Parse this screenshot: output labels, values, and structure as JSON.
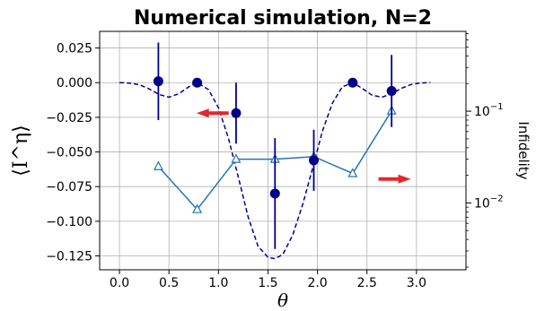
{
  "chart_data": {
    "type": "line",
    "title": "Numerical simulation, N=2",
    "xlabel": "θ",
    "ylabel": "⟨I^η⟩",
    "y2label": "Infidelity",
    "xlim": [
      -0.2,
      3.5
    ],
    "ylim": [
      -0.135,
      0.037
    ],
    "y2lim_log10": [
      -2.728,
      -0.13
    ],
    "log_y2": true,
    "grid": true,
    "xticks": [
      "0.0",
      "0.5",
      "1.0",
      "1.5",
      "2.0",
      "2.5",
      "3.0"
    ],
    "yticks": [
      "0.025",
      "0.000",
      "−0.025",
      "−0.050",
      "−0.075",
      "−0.100",
      "−0.125"
    ],
    "y2ticks": [
      "10",
      "10"
    ],
    "y2tick_exponents": [
      "−1",
      "−2"
    ],
    "series": [
      {
        "kind": "errorbar",
        "color": "#00008b",
        "x": [
          0.393,
          0.785,
          1.178,
          1.571,
          1.963,
          2.356,
          2.749
        ],
        "y": [
          0.001,
          0.0,
          -0.022,
          -0.08,
          -0.056,
          0.0,
          -0.006
        ],
        "yerr": [
          0.028,
          0.003,
          0.022,
          0.04,
          0.022,
          0.002,
          0.026
        ]
      },
      {
        "kind": "theory",
        "color": "#00008b",
        "style": "dashed",
        "x": [
          0.0,
          0.1,
          0.2,
          0.3,
          0.4,
          0.5,
          0.6,
          0.7,
          0.785,
          0.9,
          1.0,
          1.1,
          1.2,
          1.3,
          1.4,
          1.5,
          1.571,
          1.65,
          1.75,
          1.85,
          1.95,
          2.05,
          2.15,
          2.25,
          2.356,
          2.45,
          2.55,
          2.65,
          2.75,
          2.85,
          2.95,
          3.05,
          3.14
        ],
        "y": [
          0.0,
          -0.0003,
          -0.0015,
          -0.0045,
          -0.0085,
          -0.0105,
          -0.008,
          -0.003,
          0.0,
          -0.005,
          -0.018,
          -0.04,
          -0.068,
          -0.097,
          -0.118,
          -0.126,
          -0.127,
          -0.124,
          -0.11,
          -0.088,
          -0.062,
          -0.035,
          -0.015,
          -0.003,
          0.0,
          -0.004,
          -0.009,
          -0.0105,
          -0.008,
          -0.004,
          -0.0012,
          -0.0002,
          0.0
        ]
      },
      {
        "kind": "infidelity",
        "axis": "right",
        "color": "#1f77b4",
        "marker": "triangle-open",
        "x": [
          0.393,
          0.785,
          1.178,
          1.571,
          1.963,
          2.356,
          2.749
        ],
        "y": [
          0.025,
          0.0085,
          0.03,
          0.03,
          0.032,
          0.021,
          0.101
        ]
      }
    ],
    "annotations": [
      {
        "type": "arrow",
        "direction": "left",
        "color": "#e0282c",
        "x": 0.94,
        "y": -0.022
      },
      {
        "type": "arrow",
        "direction": "right",
        "color": "#e0282c",
        "x": 2.78,
        "y": -0.0695
      }
    ]
  }
}
